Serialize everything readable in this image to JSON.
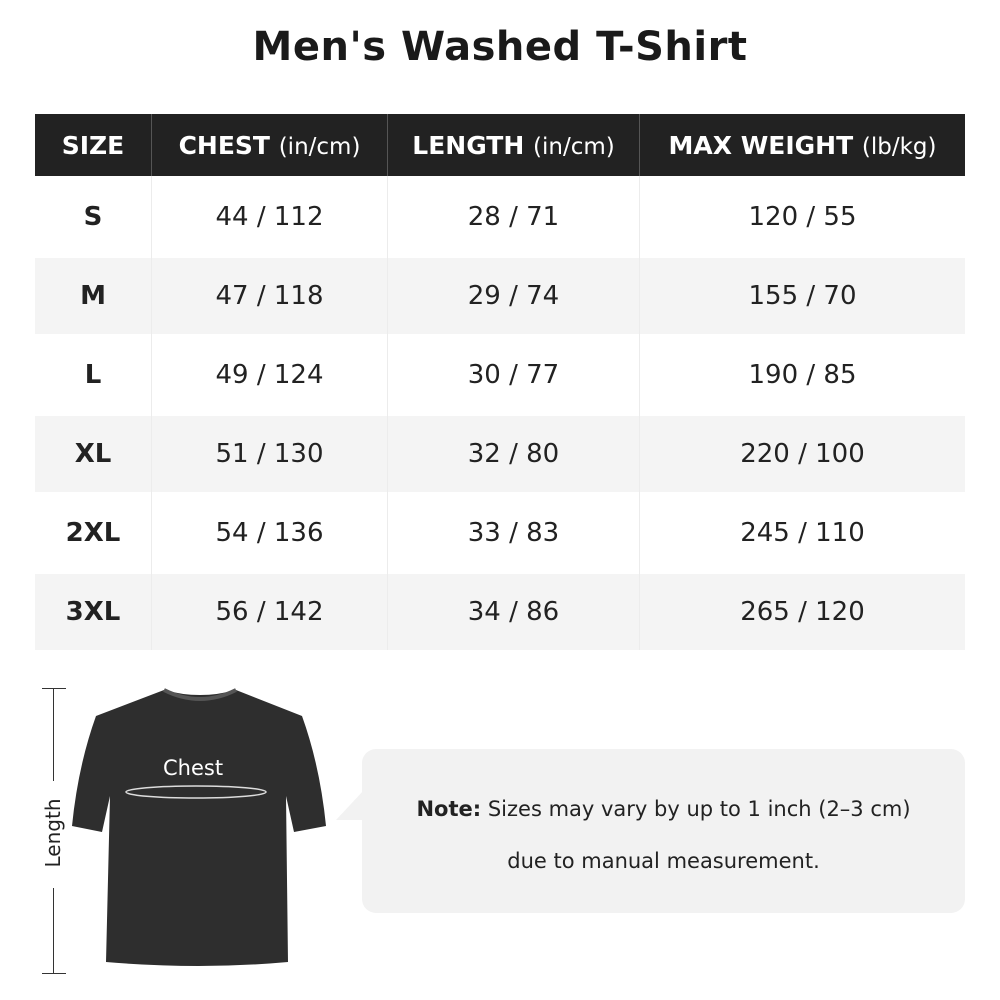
{
  "title": "Men's Washed T-Shirt",
  "table": {
    "headers": [
      {
        "label": "SIZE",
        "unit": ""
      },
      {
        "label": "CHEST",
        "unit": "(in/cm)"
      },
      {
        "label": "LENGTH",
        "unit": "(in/cm)"
      },
      {
        "label": "MAX WEIGHT",
        "unit": "(lb/kg)"
      }
    ],
    "rows": [
      [
        "S",
        "44 / 112",
        "28 / 71",
        "120 / 55"
      ],
      [
        "M",
        "47 / 118",
        "29 / 74",
        "155 / 70"
      ],
      [
        "L",
        "49 / 124",
        "30 / 77",
        "190 / 85"
      ],
      [
        "XL",
        "51 / 130",
        "32 / 80",
        "220 / 100"
      ],
      [
        "2XL",
        "54 / 136",
        "33 / 83",
        "245 / 110"
      ],
      [
        "3XL",
        "56 / 142",
        "34 / 86",
        "265 / 120"
      ]
    ]
  },
  "diagram": {
    "length_label": "Length",
    "chest_label": "Chest",
    "shirt_color": "#2e2e2e"
  },
  "note": {
    "prefix": "Note:",
    "line1": "Sizes may vary by up to 1 inch (2–3 cm)",
    "line2": "due to manual measurement."
  },
  "colors": {
    "header_bg": "#222222",
    "alt_row_bg": "#f4f4f4",
    "note_bg": "#f2f2f2"
  }
}
